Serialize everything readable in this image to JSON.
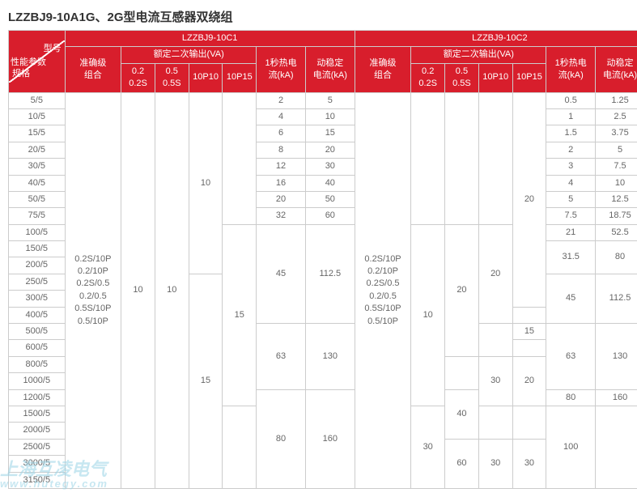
{
  "title": "LZZBJ9-10A1G、2G型电流互感器双绕组",
  "header": {
    "corner_top": "型号",
    "corner_mid": "性能参数",
    "corner_bot": "规格",
    "model_c1": "LZZBJ9-10C1",
    "model_c2": "LZZBJ9-10C2",
    "acc": "准确级\n组合",
    "rated": "额定二次输出(VA)",
    "s1": "0.2\n0.2S",
    "s2": "0.5\n0.5S",
    "s3": "10P10",
    "s4": "10P15",
    "thermal": "1秒热电\n流(kA)",
    "dynamic": "动稳定\n电流(kA)"
  },
  "specs": [
    "5/5",
    "10/5",
    "15/5",
    "20/5",
    "30/5",
    "40/5",
    "50/5",
    "75/5",
    "100/5",
    "150/5",
    "200/5",
    "250/5",
    "300/5",
    "400/5",
    "500/5",
    "600/5",
    "800/5",
    "1000/5",
    "1200/5",
    "1500/5",
    "2000/5",
    "2500/5",
    "3000/5",
    "3150/5"
  ],
  "c1": {
    "acc": "0.2S/10P\n0.2/10P\n0.2S/0.5\n0.2/0.5\n0.5S/10P\n0.5/10P",
    "s1": "10",
    "s2": "10",
    "s3_top": "10",
    "s3_bot": "15",
    "s4_top": "15",
    "thermal": [
      "2",
      "4",
      "6",
      "8",
      "12",
      "16",
      "20",
      "32",
      "45",
      "63",
      "80"
    ],
    "dynamic": [
      "5",
      "10",
      "15",
      "20",
      "30",
      "40",
      "50",
      "60",
      "112.5",
      "130",
      "160"
    ]
  },
  "c2": {
    "acc": "0.2S/10P\n0.2/10P\n0.2S/0.5\n0.2/0.5\n0.5S/10P\n0.5/10P",
    "s1_1": "10",
    "s1_2": "30",
    "s2_1": "20",
    "s2_2": "40",
    "s2_3": "60",
    "s3_1": "20",
    "s3_2": "30",
    "s3_3": "30",
    "s4_1": "20",
    "s4_2": "15",
    "s4_3": "20",
    "s4_4": "30",
    "thermal": [
      "0.5",
      "1",
      "1.5",
      "2",
      "3",
      "4",
      "5",
      "7.5",
      "21",
      "31.5",
      "45",
      "63",
      "80",
      "100"
    ],
    "dynamic": [
      "1.25",
      "2.5",
      "3.75",
      "5",
      "7.5",
      "10",
      "12.5",
      "18.75",
      "52.5",
      "80",
      "112.5",
      "130",
      "160",
      ""
    ]
  },
  "watermark_line1": "上海互凌电气",
  "watermark_line2": "www.hutegy.com"
}
